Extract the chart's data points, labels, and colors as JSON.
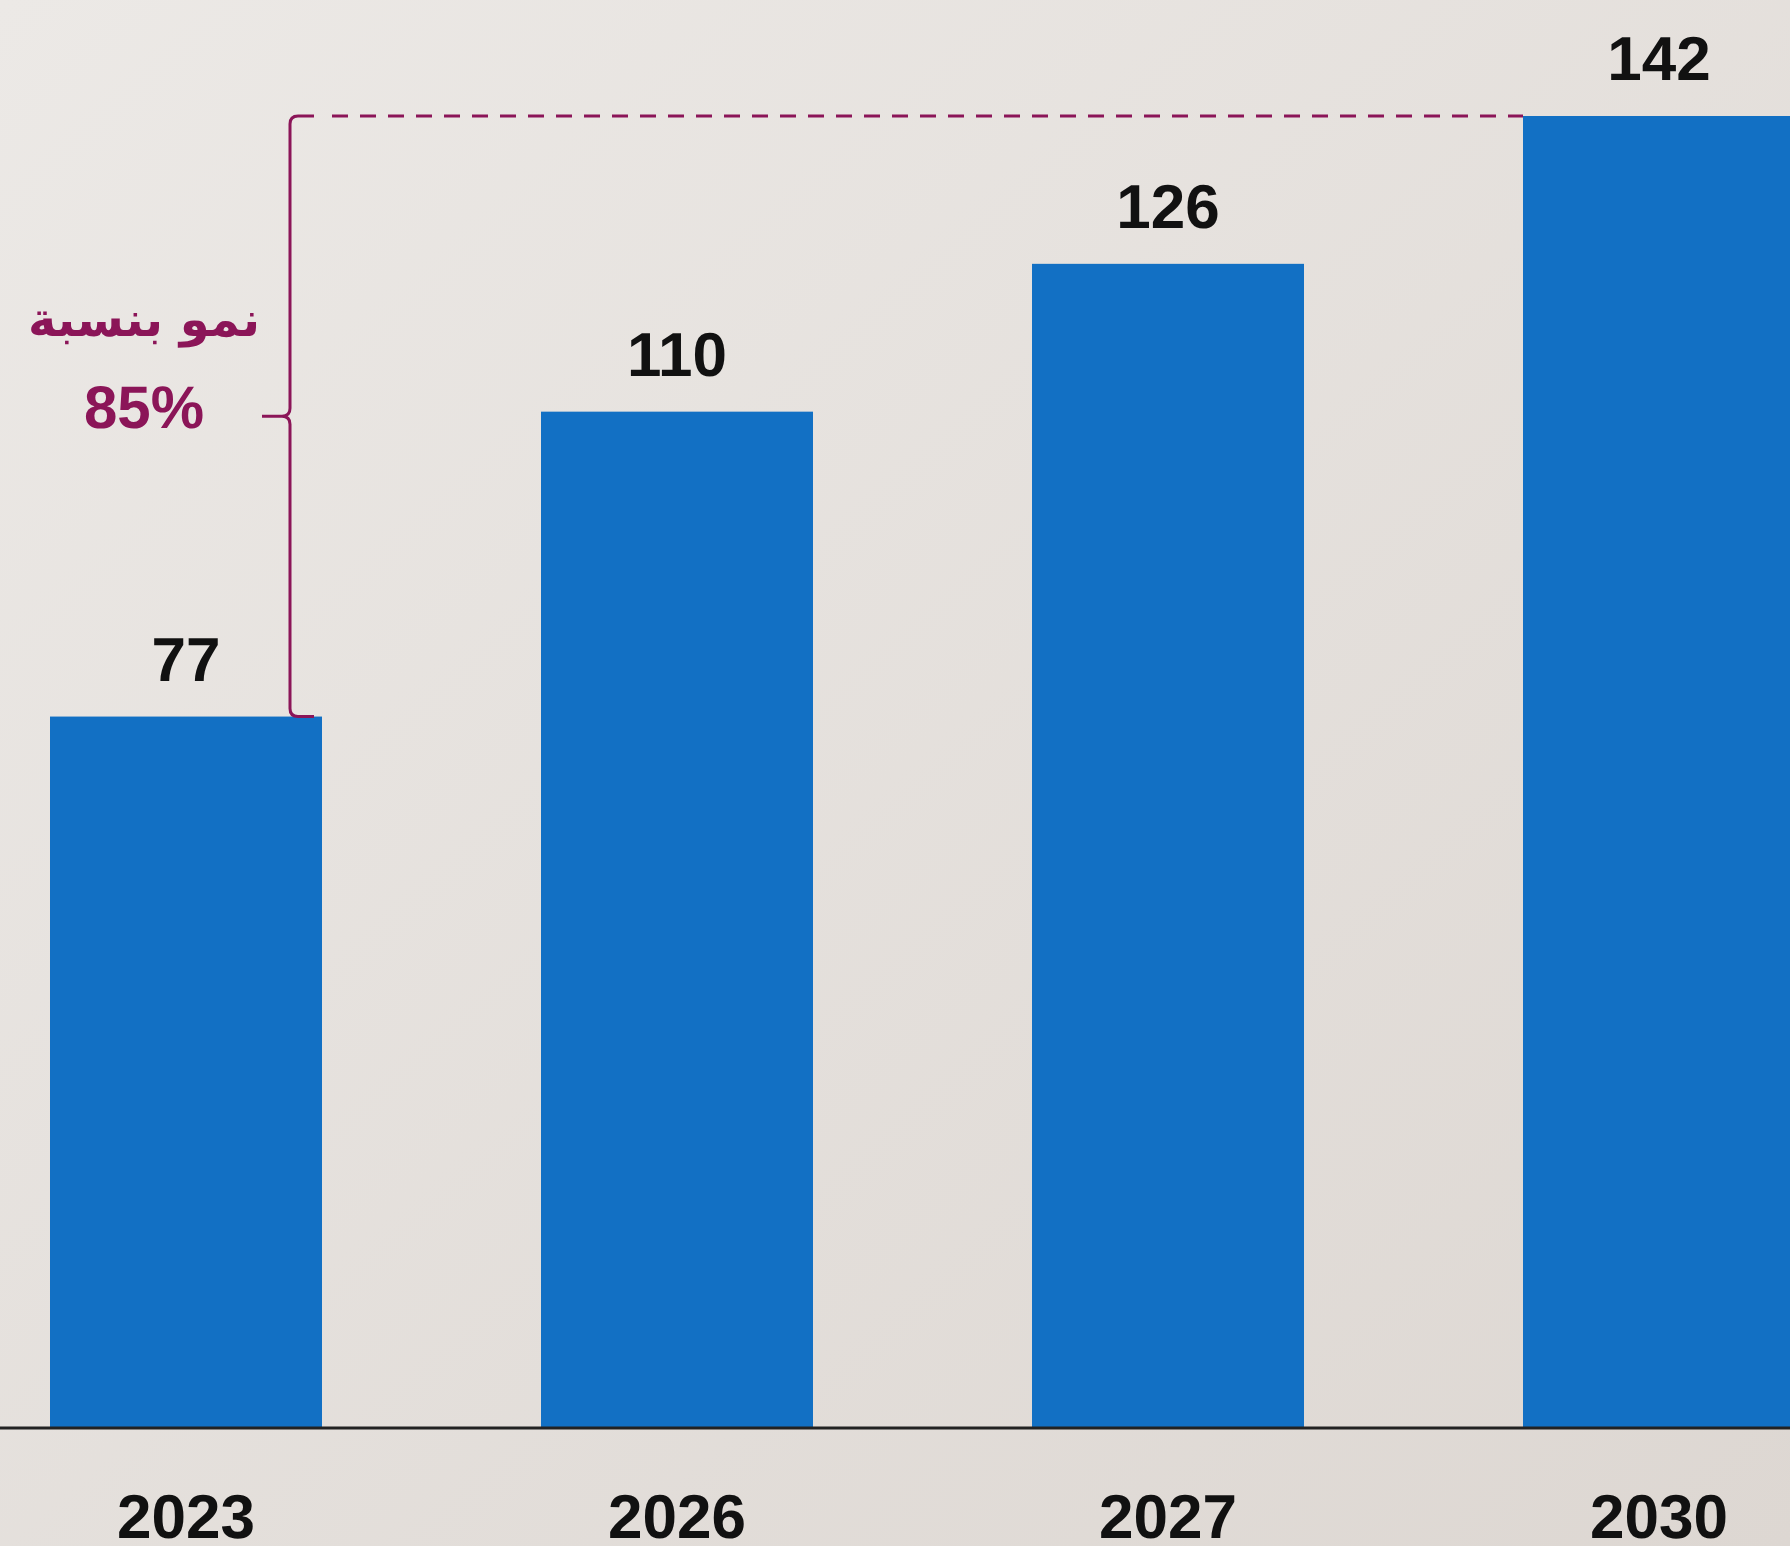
{
  "chart_data": {
    "type": "bar",
    "categories": [
      "2023",
      "2026",
      "2027",
      "2030"
    ],
    "values": [
      77,
      110,
      126,
      142
    ],
    "color": "#1270c4",
    "data_labels": true,
    "annotations": [
      "نمو بنسبة",
      "85%"
    ]
  }
}
